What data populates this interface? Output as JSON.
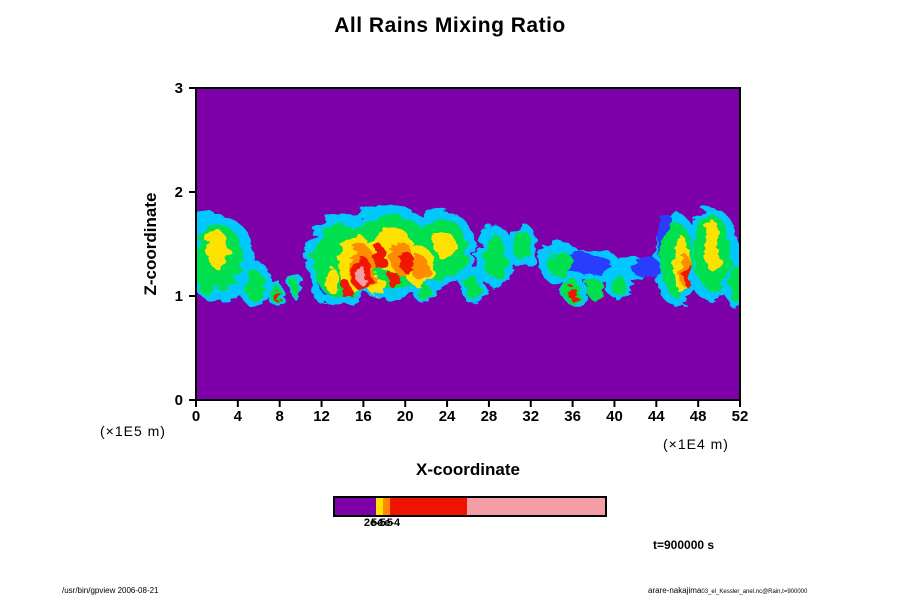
{
  "title": "All Rains Mixing Ratio",
  "axes": {
    "x_label": "X-coordinate",
    "y_label": "Z-coordinate",
    "x_unit": "(×1E4 m)",
    "y_unit": "(×1E5 m)"
  },
  "annotations": {
    "time_label": "t=900000 s",
    "footer_left": "/usr/bin/gpview 2006-08-21",
    "footer_right_main": "arare-nakajima",
    "footer_right_small": "03_el_Kessler_anel.nc@Rain,t=900000"
  },
  "colorbar": {
    "border_color": "#000000",
    "segments": [
      {
        "color": "#7D00A8",
        "fraction": 0.153
      },
      {
        "color": "#FFE100",
        "fraction": 0.026
      },
      {
        "color": "#FF8C00",
        "fraction": 0.026
      },
      {
        "color": "#F01400",
        "fraction": 0.285
      },
      {
        "color": "#F59DA4",
        "fraction": 0.51
      }
    ],
    "tick_labels": [
      "2e-5",
      "5e-5",
      "1e-4"
    ]
  },
  "chart_data": {
    "type": "heatmap",
    "title": "All Rains Mixing Ratio",
    "xlabel": "X-coordinate",
    "ylabel": "Z-coordinate",
    "x_unit_scale": "(×1E4 m)",
    "y_unit_scale": "(×1E5 m)",
    "xlim": [
      0,
      52
    ],
    "ylim": [
      0,
      3
    ],
    "x_ticks": [
      0,
      4,
      8,
      12,
      16,
      20,
      24,
      28,
      32,
      36,
      40,
      44,
      48,
      52
    ],
    "y_ticks": [
      0,
      1,
      2,
      3
    ],
    "time": "t=900000 s",
    "background_color": "#7D00A8",
    "palette": [
      "#7D00A8",
      "#00C8FF",
      "#2B3CFF",
      "#00E050",
      "#FFE100",
      "#FF8C00",
      "#F01400",
      "#F59DA4"
    ],
    "contour_levels": [
      "2e-5",
      "5e-5",
      "1e-4"
    ],
    "grid": false,
    "features": [
      {
        "x": 2.3,
        "z": 1.35,
        "rx": 3.3,
        "rz": 0.42,
        "color": "#00C8FF"
      },
      {
        "x": 0.8,
        "z": 1.62,
        "rx": 1.6,
        "rz": 0.22,
        "color": "#00C8FF"
      },
      {
        "x": 5.6,
        "z": 1.12,
        "rx": 1.6,
        "rz": 0.22,
        "color": "#00C8FF"
      },
      {
        "x": 7.6,
        "z": 1.03,
        "rx": 0.7,
        "rz": 0.13,
        "color": "#00C8FF"
      },
      {
        "x": 9.5,
        "z": 1.1,
        "rx": 0.6,
        "rz": 0.13,
        "color": "#00C8FF"
      },
      {
        "x": 13.8,
        "z": 1.35,
        "rx": 3.2,
        "rz": 0.45,
        "color": "#00C8FF"
      },
      {
        "x": 18.5,
        "z": 1.42,
        "rx": 4.8,
        "rz": 0.45,
        "color": "#00C8FF"
      },
      {
        "x": 23.5,
        "z": 1.45,
        "rx": 3.2,
        "rz": 0.38,
        "color": "#00C8FF"
      },
      {
        "x": 26.5,
        "z": 1.1,
        "rx": 1.2,
        "rz": 0.18,
        "color": "#00C8FF"
      },
      {
        "x": 28.6,
        "z": 1.38,
        "rx": 1.8,
        "rz": 0.3,
        "color": "#00C8FF"
      },
      {
        "x": 31.2,
        "z": 1.48,
        "rx": 1.4,
        "rz": 0.22,
        "color": "#00C8FF"
      },
      {
        "x": 34.8,
        "z": 1.32,
        "rx": 2.2,
        "rz": 0.2,
        "color": "#00C8FF"
      },
      {
        "x": 38.3,
        "z": 1.28,
        "rx": 2.4,
        "rz": 0.16,
        "color": "#00C8FF"
      },
      {
        "x": 41.5,
        "z": 1.25,
        "rx": 1.6,
        "rz": 0.15,
        "color": "#00C8FF"
      },
      {
        "x": 36.2,
        "z": 1.05,
        "rx": 1.2,
        "rz": 0.14,
        "color": "#00C8FF"
      },
      {
        "x": 40.3,
        "z": 1.1,
        "rx": 1.1,
        "rz": 0.13,
        "color": "#00C8FF"
      },
      {
        "x": 45.9,
        "z": 1.35,
        "rx": 2.1,
        "rz": 0.45,
        "color": "#00C8FF"
      },
      {
        "x": 49.3,
        "z": 1.4,
        "rx": 2.6,
        "rz": 0.45,
        "color": "#00C8FF"
      },
      {
        "x": 51.6,
        "z": 1.15,
        "rx": 1.1,
        "rz": 0.28,
        "color": "#00C8FF"
      },
      {
        "x": 11.9,
        "z": 1.08,
        "rx": 0.8,
        "rz": 0.14,
        "color": "#00C8FF"
      },
      {
        "x": 21.8,
        "z": 1.05,
        "rx": 1.0,
        "rz": 0.12,
        "color": "#00C8FF"
      },
      {
        "x": 12.6,
        "z": 1.3,
        "rx": 1.2,
        "rz": 0.3,
        "color": "#2B3CFF"
      },
      {
        "x": 36.8,
        "z": 1.3,
        "rx": 3.0,
        "rz": 0.1,
        "color": "#2B3CFF"
      },
      {
        "x": 43.0,
        "z": 1.28,
        "rx": 1.4,
        "rz": 0.1,
        "color": "#2B3CFF"
      },
      {
        "x": 44.9,
        "z": 1.55,
        "rx": 0.8,
        "rz": 0.25,
        "color": "#2B3CFF"
      },
      {
        "x": 2.2,
        "z": 1.38,
        "rx": 2.3,
        "rz": 0.3,
        "color": "#00E050"
      },
      {
        "x": 1.0,
        "z": 1.15,
        "rx": 0.9,
        "rz": 0.14,
        "color": "#00E050"
      },
      {
        "x": 5.6,
        "z": 1.1,
        "rx": 1.0,
        "rz": 0.14,
        "color": "#00E050"
      },
      {
        "x": 13.8,
        "z": 1.33,
        "rx": 2.6,
        "rz": 0.36,
        "color": "#00E050"
      },
      {
        "x": 18.5,
        "z": 1.42,
        "rx": 4.0,
        "rz": 0.36,
        "color": "#00E050"
      },
      {
        "x": 23.5,
        "z": 1.45,
        "rx": 2.5,
        "rz": 0.3,
        "color": "#00E050"
      },
      {
        "x": 28.6,
        "z": 1.38,
        "rx": 1.2,
        "rz": 0.2,
        "color": "#00E050"
      },
      {
        "x": 31.2,
        "z": 1.48,
        "rx": 0.9,
        "rz": 0.14,
        "color": "#00E050"
      },
      {
        "x": 34.9,
        "z": 1.3,
        "rx": 1.3,
        "rz": 0.12,
        "color": "#00E050"
      },
      {
        "x": 35.9,
        "z": 1.05,
        "rx": 0.8,
        "rz": 0.12,
        "color": "#00E050"
      },
      {
        "x": 38.2,
        "z": 1.06,
        "rx": 0.9,
        "rz": 0.1,
        "color": "#00E050"
      },
      {
        "x": 40.4,
        "z": 1.1,
        "rx": 0.7,
        "rz": 0.1,
        "color": "#00E050"
      },
      {
        "x": 45.9,
        "z": 1.35,
        "rx": 1.5,
        "rz": 0.36,
        "color": "#00E050"
      },
      {
        "x": 49.3,
        "z": 1.42,
        "rx": 1.8,
        "rz": 0.36,
        "color": "#00E050"
      },
      {
        "x": 7.6,
        "z": 1.02,
        "rx": 0.45,
        "rz": 0.09,
        "color": "#00E050"
      },
      {
        "x": 9.5,
        "z": 1.08,
        "rx": 0.4,
        "rz": 0.09,
        "color": "#00E050"
      },
      {
        "x": 26.4,
        "z": 1.08,
        "rx": 0.7,
        "rz": 0.11,
        "color": "#00E050"
      },
      {
        "x": 21.8,
        "z": 1.04,
        "rx": 0.6,
        "rz": 0.08,
        "color": "#00E050"
      },
      {
        "x": 51.6,
        "z": 1.12,
        "rx": 0.6,
        "rz": 0.18,
        "color": "#00E050"
      },
      {
        "x": 2.0,
        "z": 1.45,
        "rx": 1.1,
        "rz": 0.18,
        "color": "#FFE100"
      },
      {
        "x": 15.3,
        "z": 1.32,
        "rx": 1.7,
        "rz": 0.27,
        "color": "#FFE100"
      },
      {
        "x": 18.7,
        "z": 1.45,
        "rx": 2.0,
        "rz": 0.22,
        "color": "#FFE100"
      },
      {
        "x": 21.2,
        "z": 1.3,
        "rx": 1.4,
        "rz": 0.2,
        "color": "#FFE100"
      },
      {
        "x": 23.8,
        "z": 1.48,
        "rx": 1.0,
        "rz": 0.14,
        "color": "#FFE100"
      },
      {
        "x": 13.0,
        "z": 1.15,
        "rx": 0.7,
        "rz": 0.12,
        "color": "#FFE100"
      },
      {
        "x": 46.4,
        "z": 1.3,
        "rx": 0.7,
        "rz": 0.28,
        "color": "#FFE100"
      },
      {
        "x": 49.4,
        "z": 1.48,
        "rx": 0.7,
        "rz": 0.25,
        "color": "#FFE100"
      },
      {
        "x": 17.3,
        "z": 1.1,
        "rx": 0.8,
        "rz": 0.1,
        "color": "#FFE100"
      },
      {
        "x": 15.9,
        "z": 1.27,
        "rx": 1.25,
        "rz": 0.22,
        "color": "#FF8C00"
      },
      {
        "x": 19.6,
        "z": 1.37,
        "rx": 1.1,
        "rz": 0.16,
        "color": "#FF8C00"
      },
      {
        "x": 21.4,
        "z": 1.27,
        "rx": 0.8,
        "rz": 0.12,
        "color": "#FF8C00"
      },
      {
        "x": 46.7,
        "z": 1.25,
        "rx": 0.45,
        "rz": 0.16,
        "color": "#FF8C00"
      },
      {
        "x": 15.8,
        "z": 1.22,
        "rx": 0.95,
        "rz": 0.17,
        "color": "#F01400"
      },
      {
        "x": 17.6,
        "z": 1.37,
        "rx": 0.6,
        "rz": 0.12,
        "color": "#F01400"
      },
      {
        "x": 20.2,
        "z": 1.32,
        "rx": 0.7,
        "rz": 0.1,
        "color": "#F01400"
      },
      {
        "x": 14.4,
        "z": 1.06,
        "rx": 0.45,
        "rz": 0.09,
        "color": "#F01400"
      },
      {
        "x": 47.0,
        "z": 1.2,
        "rx": 0.3,
        "rz": 0.12,
        "color": "#F01400"
      },
      {
        "x": 7.7,
        "z": 1.0,
        "rx": 0.22,
        "rz": 0.06,
        "color": "#F01400"
      },
      {
        "x": 35.9,
        "z": 1.03,
        "rx": 0.35,
        "rz": 0.07,
        "color": "#F01400"
      },
      {
        "x": 18.9,
        "z": 1.15,
        "rx": 0.5,
        "rz": 0.08,
        "color": "#F01400"
      },
      {
        "x": 15.8,
        "z": 1.2,
        "rx": 0.4,
        "rz": 0.09,
        "color": "#F59DA4"
      }
    ]
  }
}
